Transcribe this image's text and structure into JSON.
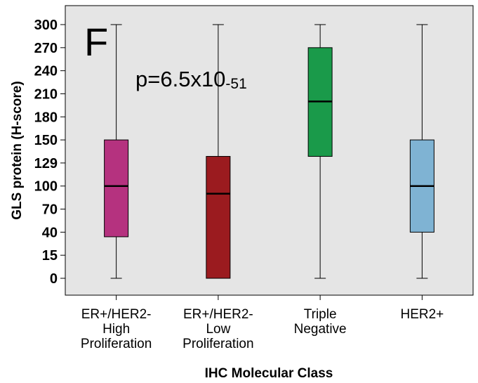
{
  "chart_data": {
    "type": "boxplot",
    "panel_label": "F",
    "annotation": {
      "text": "p=6.5x10",
      "exponent": "-51"
    },
    "xlabel": "IHC Molecular Class",
    "ylabel": "GLS protein (H-score)",
    "y_ticks": [
      "0",
      "15",
      "40",
      "70",
      "100",
      "129",
      "150",
      "180",
      "210",
      "240",
      "270",
      "300"
    ],
    "categories": [
      [
        "ER+/HER2-",
        "High",
        "Proliferation"
      ],
      [
        "ER+/HER2-",
        "Low",
        "Proliferation"
      ],
      [
        "Triple",
        "Negative"
      ],
      [
        "HER2+"
      ]
    ],
    "boxes": [
      {
        "min": 0,
        "q1": 35,
        "median": 100,
        "q3": 150,
        "max": 300,
        "color": "#b5327f"
      },
      {
        "min": 0,
        "q1": 0,
        "median": 90,
        "q3": 135,
        "max": 300,
        "color": "#9b1b1f"
      },
      {
        "min": 0,
        "q1": 135,
        "median": 200,
        "q3": 270,
        "max": 300,
        "color": "#1a9a4a"
      },
      {
        "min": 0,
        "q1": 40,
        "median": 100,
        "q3": 150,
        "max": 300,
        "color": "#7fb3d3"
      }
    ],
    "background_color": "#e5e5e5",
    "grid": false
  }
}
